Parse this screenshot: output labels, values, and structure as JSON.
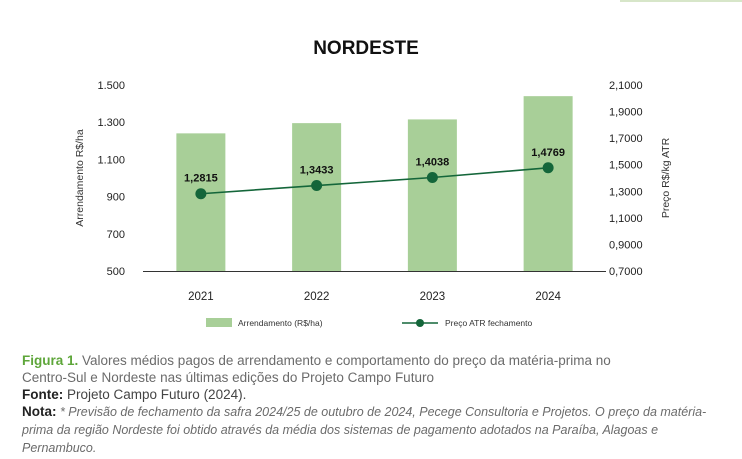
{
  "chart_data": {
    "type": "bar",
    "title": "NORDESTE",
    "categories": [
      "2021",
      "2022",
      "2023",
      "2024"
    ],
    "series": [
      {
        "name": "Arrendamento (R$/ha)",
        "type": "bar",
        "axis": "left",
        "color": "#a8cf98",
        "values": [
          1240,
          1295,
          1315,
          1440
        ]
      },
      {
        "name": "Preço ATR fechamento",
        "type": "line",
        "axis": "right",
        "color": "#14663a",
        "values": [
          1.2815,
          1.3433,
          1.4038,
          1.4769
        ],
        "data_labels": [
          "1,2815",
          "1,3433",
          "1,4038",
          "1,4769"
        ]
      }
    ],
    "ylabel": "Arrendamento R$/ha",
    "ylabel_right": "Preço R$/kg ATR",
    "ylim": [
      500,
      1500
    ],
    "ylim_right": [
      0.7,
      2.1
    ],
    "yticks": [
      500,
      700,
      900,
      1100,
      1300,
      1500
    ],
    "ytick_labels": [
      "500",
      "700",
      "900",
      "1.100",
      "1.300",
      "1.500"
    ],
    "yticks_right": [
      0.7,
      0.9,
      1.1,
      1.3,
      1.5,
      1.7,
      1.9,
      2.1
    ],
    "ytick_labels_right": [
      "0,7000",
      "0,9000",
      "1,1000",
      "1,3000",
      "1,5000",
      "1,7000",
      "1,9000",
      "2,1000"
    ],
    "grid": false,
    "legend_position": "bottom"
  },
  "caption": {
    "figure_label": "Figura 1.",
    "text_line1": " Valores médios pagos de arrendamento e comportamento do preço da matéria-prima no",
    "text_line2": "Centro-Sul e Nordeste nas últimas edições do Projeto Campo Futuro",
    "fonte_label": "Fonte:",
    "fonte_text": " Projeto Campo Futuro (2024).",
    "nota_label": "Nota:",
    "nota_text": " * Previsão de fechamento da safra 2024/25 de outubro de 2024, Pecege Consultoria e Projetos. O preço da matéria-prima da região Nordeste foi obtido através da média dos sistemas de pagamento adotados na Paraíba, Alagoas e Pernambuco."
  },
  "colors": {
    "bar": "#a8cf98",
    "line": "#14663a",
    "axis": "#222222",
    "accent": "#5ea63a"
  }
}
